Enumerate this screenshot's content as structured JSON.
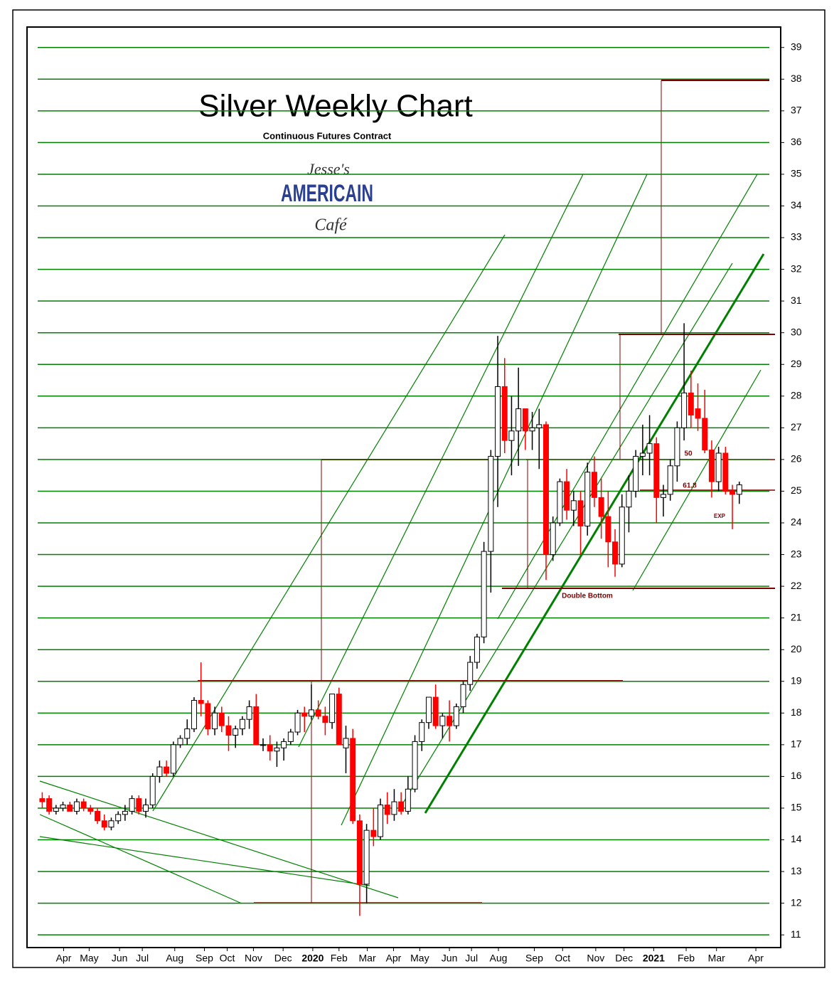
{
  "chart_data": {
    "type": "candlestick",
    "title": "Silver Weekly Chart",
    "subtitle": "Continuous Futures Contract",
    "logo": [
      "Jesse's",
      "AMERICAIN",
      "Café"
    ],
    "annotations": [
      "Double Bottom",
      "50",
      "61.8",
      "EXP"
    ],
    "up_color": "#ffffff",
    "down_color": "#ff0000",
    "grid_color": "#008000",
    "grid": true,
    "ylim": [
      10.6,
      39.6
    ],
    "yticks": [
      11,
      12,
      13,
      14,
      15,
      16,
      17,
      18,
      19,
      20,
      21,
      22,
      23,
      24,
      25,
      26,
      27,
      28,
      29,
      30,
      31,
      32,
      33,
      34,
      35,
      36,
      37,
      38,
      39
    ],
    "xlim": [
      0,
      109
    ],
    "xticks": [
      {
        "value": 5.1,
        "label": "Apr"
      },
      {
        "value": 8.8,
        "label": "May"
      },
      {
        "value": 13.2,
        "label": "Jun"
      },
      {
        "value": 16.5,
        "label": "Jul"
      },
      {
        "value": 21.2,
        "label": "Aug"
      },
      {
        "value": 25.5,
        "label": "Sep"
      },
      {
        "value": 28.8,
        "label": "Oct"
      },
      {
        "value": 32.6,
        "label": "Nov"
      },
      {
        "value": 36.9,
        "label": "Dec"
      },
      {
        "value": 41.2,
        "label": "2020"
      },
      {
        "value": 45,
        "label": "Feb"
      },
      {
        "value": 49.1,
        "label": "Mar"
      },
      {
        "value": 52.9,
        "label": "Apr"
      },
      {
        "value": 56.7,
        "label": "May"
      },
      {
        "value": 61,
        "label": "Jun"
      },
      {
        "value": 64.2,
        "label": "Jul"
      },
      {
        "value": 68.1,
        "label": "Aug"
      },
      {
        "value": 73.3,
        "label": "Sep"
      },
      {
        "value": 77.4,
        "label": "Oct"
      },
      {
        "value": 82.2,
        "label": "Nov"
      },
      {
        "value": 86.3,
        "label": "Dec"
      },
      {
        "value": 90.6,
        "label": "2021"
      },
      {
        "value": 95.3,
        "label": "Feb"
      },
      {
        "value": 99.7,
        "label": "Mar"
      },
      {
        "value": 105.4,
        "label": "Apr"
      }
    ],
    "x": [
      2,
      3,
      4,
      5,
      6,
      7,
      8,
      9,
      10,
      11,
      12,
      13,
      14,
      15,
      16,
      17,
      18,
      19,
      20,
      21,
      22,
      23,
      24,
      25,
      26,
      27,
      28,
      29,
      30,
      31,
      32,
      33,
      34,
      35,
      36,
      37,
      38,
      39,
      40,
      41,
      42,
      43,
      44,
      45,
      46,
      47,
      48,
      49,
      50,
      51,
      52,
      53,
      54,
      55,
      56,
      57,
      58,
      59,
      60,
      61,
      62,
      63,
      64,
      65,
      66,
      67,
      68,
      69,
      70,
      71,
      72,
      73,
      74,
      75,
      76,
      77,
      78,
      79,
      80,
      81,
      82,
      83,
      84,
      85,
      86,
      87,
      88,
      89,
      90,
      91,
      92,
      93,
      94,
      95,
      96,
      97,
      98,
      99,
      100,
      101,
      102,
      103
    ],
    "ohlc": [
      [
        15.3,
        15.5,
        15.0,
        15.2
      ],
      [
        15.3,
        15.4,
        14.8,
        14.9
      ],
      [
        14.9,
        15.1,
        14.8,
        15.0
      ],
      [
        15.0,
        15.2,
        14.9,
        15.1
      ],
      [
        15.1,
        15.2,
        14.9,
        14.9
      ],
      [
        14.9,
        15.3,
        14.8,
        15.2
      ],
      [
        15.2,
        15.3,
        14.9,
        15.0
      ],
      [
        15.0,
        15.1,
        14.8,
        14.9
      ],
      [
        14.9,
        15.0,
        14.5,
        14.6
      ],
      [
        14.6,
        14.8,
        14.3,
        14.4
      ],
      [
        14.4,
        14.7,
        14.3,
        14.6
      ],
      [
        14.6,
        14.9,
        14.5,
        14.8
      ],
      [
        14.8,
        15.1,
        14.6,
        14.9
      ],
      [
        14.9,
        15.4,
        14.8,
        15.3
      ],
      [
        15.3,
        15.4,
        14.8,
        14.9
      ],
      [
        14.9,
        15.3,
        14.7,
        15.1
      ],
      [
        15.1,
        16.1,
        15.0,
        16.0
      ],
      [
        16.0,
        16.5,
        15.8,
        16.3
      ],
      [
        16.3,
        16.5,
        16.0,
        16.1
      ],
      [
        16.1,
        17.1,
        16.0,
        17.0
      ],
      [
        17.0,
        17.3,
        16.9,
        17.2
      ],
      [
        17.2,
        17.8,
        17.0,
        17.5
      ],
      [
        17.5,
        18.5,
        17.4,
        18.4
      ],
      [
        18.4,
        19.6,
        17.9,
        18.3
      ],
      [
        18.3,
        18.4,
        17.3,
        17.5
      ],
      [
        17.5,
        18.2,
        17.3,
        18.0
      ],
      [
        18.0,
        18.2,
        17.4,
        17.6
      ],
      [
        17.6,
        17.9,
        16.8,
        17.3
      ],
      [
        17.3,
        17.6,
        16.9,
        17.5
      ],
      [
        17.5,
        17.9,
        17.3,
        17.8
      ],
      [
        17.8,
        18.4,
        17.5,
        18.2
      ],
      [
        18.2,
        18.6,
        17.0,
        17.0
      ],
      [
        17.0,
        17.2,
        16.8,
        17.0
      ],
      [
        17.0,
        17.3,
        16.5,
        16.8
      ],
      [
        16.8,
        17.1,
        16.3,
        16.9
      ],
      [
        16.9,
        17.2,
        16.5,
        17.1
      ],
      [
        17.1,
        17.5,
        17.0,
        17.4
      ],
      [
        17.4,
        18.1,
        17.3,
        18.0
      ],
      [
        18.0,
        18.2,
        17.4,
        17.9
      ],
      [
        17.9,
        18.9,
        17.8,
        18.1
      ],
      [
        18.1,
        18.4,
        17.8,
        17.9
      ],
      [
        17.9,
        18.2,
        17.3,
        17.7
      ],
      [
        17.7,
        18.6,
        17.5,
        18.6
      ],
      [
        18.6,
        18.8,
        17.0,
        17.0
      ],
      [
        16.9,
        17.6,
        16.1,
        17.2
      ],
      [
        17.2,
        17.5,
        14.5,
        14.6
      ],
      [
        14.6,
        14.8,
        11.6,
        12.6
      ],
      [
        12.6,
        14.5,
        12.0,
        14.3
      ],
      [
        14.3,
        15.0,
        13.8,
        14.1
      ],
      [
        14.1,
        15.3,
        14.0,
        15.1
      ],
      [
        15.1,
        15.5,
        14.5,
        14.8
      ],
      [
        14.8,
        15.6,
        14.6,
        15.2
      ],
      [
        15.2,
        15.5,
        14.8,
        14.9
      ],
      [
        14.9,
        16.0,
        14.8,
        15.6
      ],
      [
        15.6,
        17.3,
        15.5,
        17.1
      ],
      [
        17.1,
        17.8,
        16.8,
        17.7
      ],
      [
        17.7,
        18.5,
        17.5,
        18.5
      ],
      [
        18.5,
        18.9,
        17.5,
        17.6
      ],
      [
        17.6,
        18.0,
        17.2,
        17.9
      ],
      [
        17.9,
        18.4,
        17.1,
        17.6
      ],
      [
        17.6,
        18.3,
        17.5,
        18.2
      ],
      [
        18.2,
        19.0,
        18.0,
        18.9
      ],
      [
        18.9,
        19.8,
        18.7,
        19.6
      ],
      [
        19.6,
        20.5,
        19.4,
        20.4
      ],
      [
        20.4,
        23.4,
        20.2,
        23.1
      ],
      [
        23.1,
        26.3,
        21.8,
        26.1
      ],
      [
        26.1,
        29.9,
        24.5,
        28.3
      ],
      [
        28.3,
        29.2,
        26.2,
        26.6
      ],
      [
        26.6,
        28.0,
        25.5,
        26.9
      ],
      [
        26.9,
        28.9,
        25.8,
        27.6
      ],
      [
        27.6,
        27.6,
        26.3,
        26.9
      ],
      [
        26.9,
        27.5,
        26.3,
        27.0
      ],
      [
        27.0,
        27.6,
        25.7,
        27.1
      ],
      [
        27.1,
        27.2,
        22.2,
        23.0
      ],
      [
        23.0,
        24.2,
        22.8,
        24.0
      ],
      [
        24.0,
        25.4,
        23.9,
        25.3
      ],
      [
        25.3,
        25.7,
        24.1,
        24.4
      ],
      [
        24.4,
        25.0,
        23.9,
        24.7
      ],
      [
        24.7,
        25.0,
        23.0,
        23.9
      ],
      [
        23.9,
        25.9,
        23.6,
        25.6
      ],
      [
        25.6,
        26.1,
        24.5,
        24.8
      ],
      [
        24.8,
        25.4,
        23.5,
        24.2
      ],
      [
        24.2,
        25.0,
        22.6,
        23.4
      ],
      [
        23.4,
        23.8,
        22.3,
        22.7
      ],
      [
        22.7,
        24.9,
        22.6,
        24.5
      ],
      [
        24.5,
        25.5,
        23.7,
        25.0
      ],
      [
        25.0,
        26.3,
        24.8,
        26.1
      ],
      [
        26.1,
        27.1,
        25.5,
        26.2
      ],
      [
        26.2,
        27.4,
        25.5,
        26.5
      ],
      [
        26.5,
        26.7,
        24.0,
        24.8
      ],
      [
        24.8,
        25.2,
        24.2,
        24.9
      ],
      [
        24.9,
        26.0,
        24.7,
        25.8
      ],
      [
        25.8,
        27.2,
        25.3,
        27.0
      ],
      [
        27.0,
        30.3,
        26.6,
        28.1
      ],
      [
        28.1,
        28.8,
        27.0,
        27.4
      ],
      [
        27.6,
        28.4,
        26.9,
        27.3
      ],
      [
        27.3,
        28.2,
        26.2,
        26.3
      ],
      [
        26.3,
        26.6,
        24.8,
        25.3
      ],
      [
        25.3,
        26.4,
        25.0,
        26.2
      ],
      [
        26.2,
        26.4,
        24.9,
        25.0
      ],
      [
        25.0,
        25.2,
        23.8,
        24.9
      ],
      [
        24.9,
        25.3,
        24.6,
        25.2
      ]
    ]
  }
}
